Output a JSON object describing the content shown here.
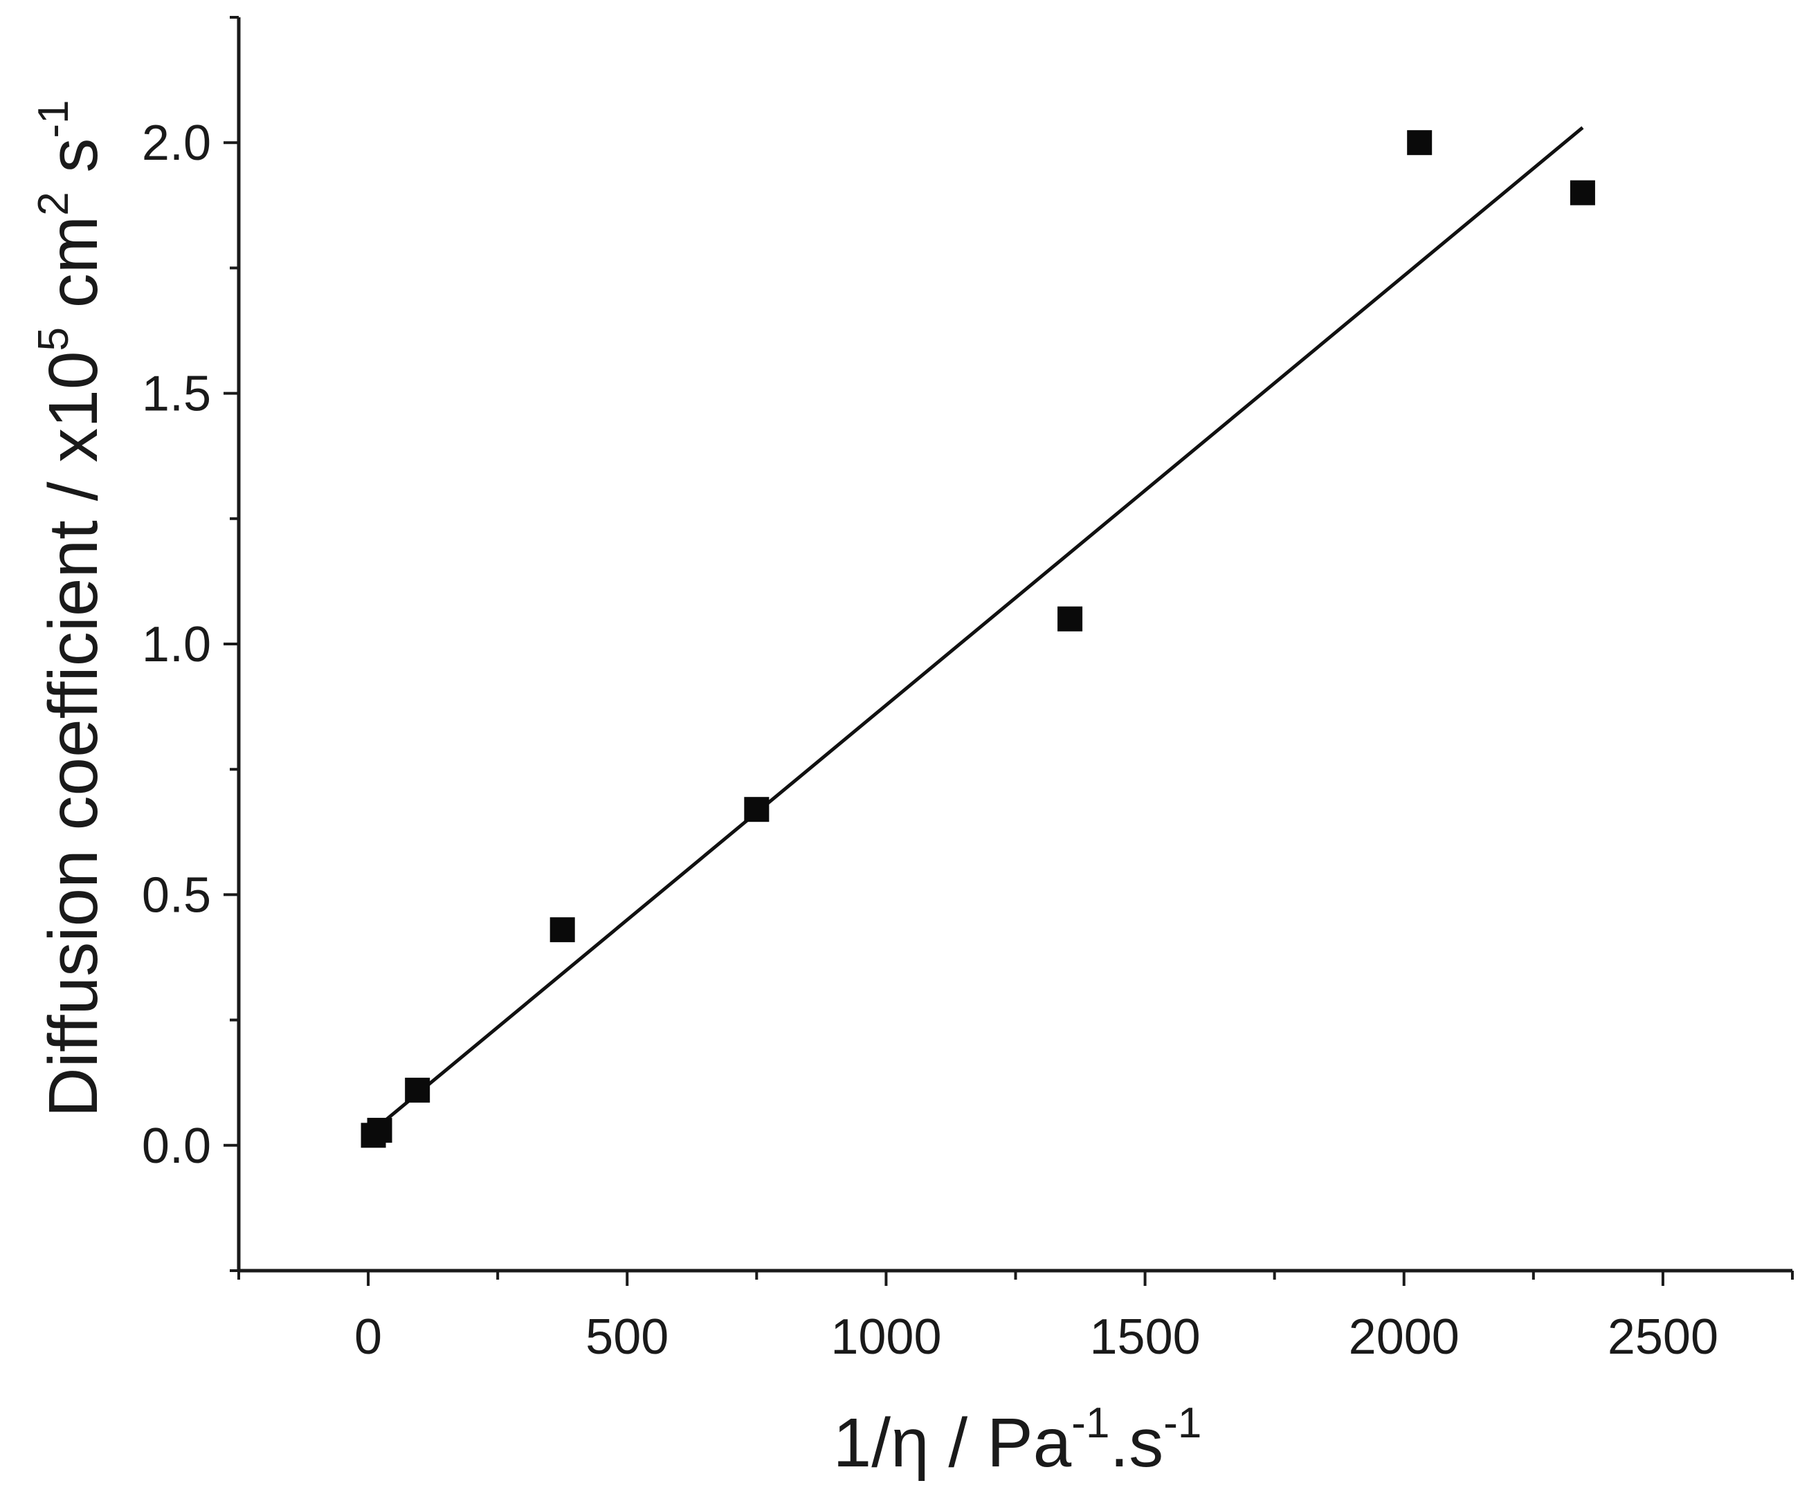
{
  "chart_data": {
    "type": "scatter",
    "title": "",
    "xlabel": {
      "base": "1/η / Pa",
      "sup1": "-1",
      "mid": ".s",
      "sup2": "-1"
    },
    "ylabel": {
      "base": "Diffusion coefficient / x10",
      "sup1": "5",
      "mid": " cm",
      "sup2": "2",
      "mid2": " s",
      "sup3": "-1"
    },
    "xlim": [
      -250,
      2750
    ],
    "ylim": [
      -0.25,
      2.25
    ],
    "x_ticks_major": [
      0,
      500,
      1000,
      1500,
      2000,
      2500
    ],
    "x_tick_labels": [
      "0",
      "500",
      "1000",
      "1500",
      "2000",
      "2500"
    ],
    "x_ticks_minor": [
      -250,
      250,
      750,
      1250,
      1750,
      2250,
      2750
    ],
    "y_ticks_major": [
      0.0,
      0.5,
      1.0,
      1.5,
      2.0
    ],
    "y_tick_labels": [
      "0.0",
      "0.5",
      "1.0",
      "1.5",
      "2.0"
    ],
    "y_ticks_minor": [
      -0.25,
      0.25,
      0.75,
      1.25,
      1.75,
      2.25
    ],
    "grid": false,
    "series": [
      {
        "marker": "square",
        "color": "#0a0a0a",
        "points": [
          {
            "x": 10,
            "y": 0.02
          },
          {
            "x": 22,
            "y": 0.03
          },
          {
            "x": 95,
            "y": 0.11
          },
          {
            "x": 375,
            "y": 0.43
          },
          {
            "x": 750,
            "y": 0.67
          },
          {
            "x": 1355,
            "y": 1.05
          },
          {
            "x": 2030,
            "y": 2.0
          },
          {
            "x": 2345,
            "y": 1.9
          }
        ]
      }
    ],
    "fit_line": {
      "color": "#111111",
      "x": [
        10,
        2345
      ],
      "y": [
        0.03,
        2.03
      ]
    }
  }
}
